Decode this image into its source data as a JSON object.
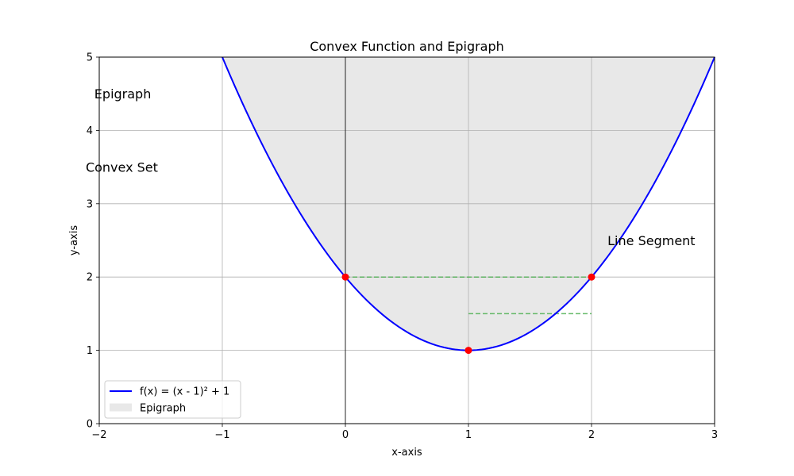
{
  "chart_data": {
    "type": "line",
    "title": "Convex Function and Epigraph",
    "xlabel": "x-axis",
    "ylabel": "y-axis",
    "xlim": [
      -2,
      3
    ],
    "ylim": [
      0,
      5
    ],
    "x_ticks": [
      -2,
      -1,
      0,
      1,
      2,
      3
    ],
    "y_ticks": [
      0,
      1,
      2,
      3,
      4,
      5
    ],
    "x_tick_labels": [
      "−2",
      "−1",
      "0",
      "1",
      "2",
      "3"
    ],
    "y_tick_labels": [
      "0",
      "1",
      "2",
      "3",
      "4",
      "5"
    ],
    "grid": true,
    "series": [
      {
        "name": "f(x) = (x - 1)² + 1",
        "kind": "line",
        "color": "#0000ff",
        "formula": "(x - 1)^2 + 1",
        "x_range": [
          -1,
          3
        ]
      },
      {
        "name": "Epigraph",
        "kind": "area",
        "color": "#e8e8e8",
        "upper": 5
      }
    ],
    "points": [
      {
        "x": 0,
        "y": 2,
        "color": "#ff0000"
      },
      {
        "x": 1,
        "y": 1,
        "color": "#ff0000"
      },
      {
        "x": 2,
        "y": 2,
        "color": "#ff0000"
      }
    ],
    "dashed_segments": [
      {
        "x1": 0,
        "y1": 2,
        "x2": 2,
        "y2": 2,
        "color": "#4caf50"
      },
      {
        "x1": 1,
        "y1": 1.5,
        "x2": 2,
        "y2": 1.5,
        "color": "#4caf50"
      }
    ],
    "annotations": [
      {
        "text": "Epigraph",
        "x": -2.04,
        "y": 4.5
      },
      {
        "text": "Convex Set",
        "x": -2.11,
        "y": 3.5
      },
      {
        "text": "Line Segment",
        "x": 2.13,
        "y": 2.5
      }
    ],
    "vertical_line": {
      "x": 0,
      "color": "#000000"
    },
    "legend": {
      "position": "lower-left",
      "entries": [
        {
          "label": "f(x) = (x - 1)² + 1",
          "kind": "line",
          "color": "#0000ff"
        },
        {
          "label": "Epigraph",
          "kind": "patch",
          "color": "#e8e8e8"
        }
      ]
    }
  }
}
